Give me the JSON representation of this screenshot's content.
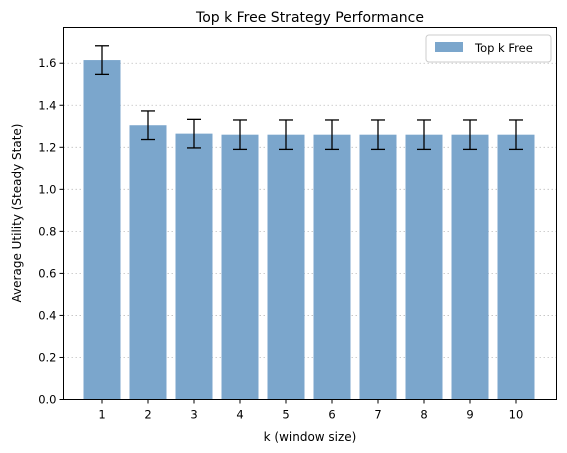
{
  "chart_data": {
    "type": "bar",
    "title": "Top k Free Strategy Performance",
    "xlabel": "k (window size)",
    "ylabel": "Average Utility (Steady State)",
    "categories": [
      "1",
      "2",
      "3",
      "4",
      "5",
      "6",
      "7",
      "8",
      "9",
      "10"
    ],
    "series": [
      {
        "name": "Top k Free",
        "color": "#7BA6CC",
        "values": [
          1.615,
          1.305,
          1.265,
          1.26,
          1.26,
          1.26,
          1.26,
          1.26,
          1.26,
          1.26
        ],
        "errors": [
          0.068,
          0.068,
          0.068,
          0.07,
          0.07,
          0.07,
          0.07,
          0.07,
          0.07,
          0.07
        ]
      }
    ],
    "ylim": [
      0,
      1.77
    ],
    "yticks": [
      "0.0",
      "0.2",
      "0.4",
      "0.6",
      "0.8",
      "1.0",
      "1.2",
      "1.4",
      "1.6"
    ],
    "grid": "y-dotted",
    "legend_position": "top-right"
  }
}
